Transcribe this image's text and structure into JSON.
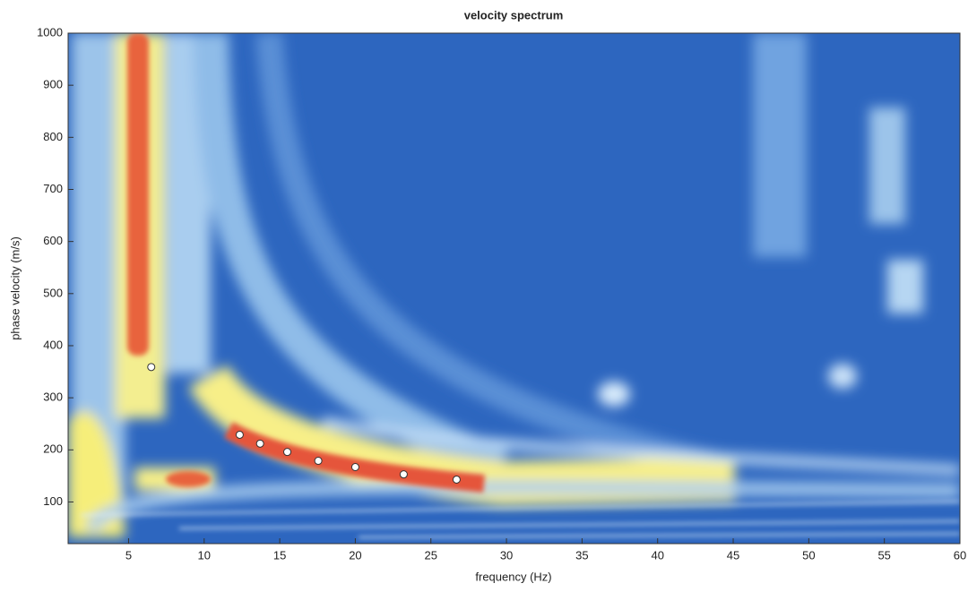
{
  "chart_data": {
    "type": "scatter",
    "title": "velocity spectrum",
    "x_label": "frequency (Hz)",
    "y_label": "phase velocity (m/s)",
    "x": [
      6.5,
      12.35,
      13.7,
      15.5,
      17.55,
      20.0,
      23.2,
      26.7
    ],
    "values": [
      359,
      229,
      212,
      196,
      179,
      167,
      153,
      143
    ],
    "color": "#ffffff",
    "xlim": [
      1,
      60
    ],
    "xticks": [
      5,
      10,
      15,
      20,
      25,
      30,
      35,
      40,
      45,
      50,
      55,
      60
    ],
    "ylim": [
      20,
      1000
    ],
    "yticks": [
      100,
      200,
      300,
      400,
      500,
      600,
      700,
      800,
      900,
      1000
    ]
  }
}
